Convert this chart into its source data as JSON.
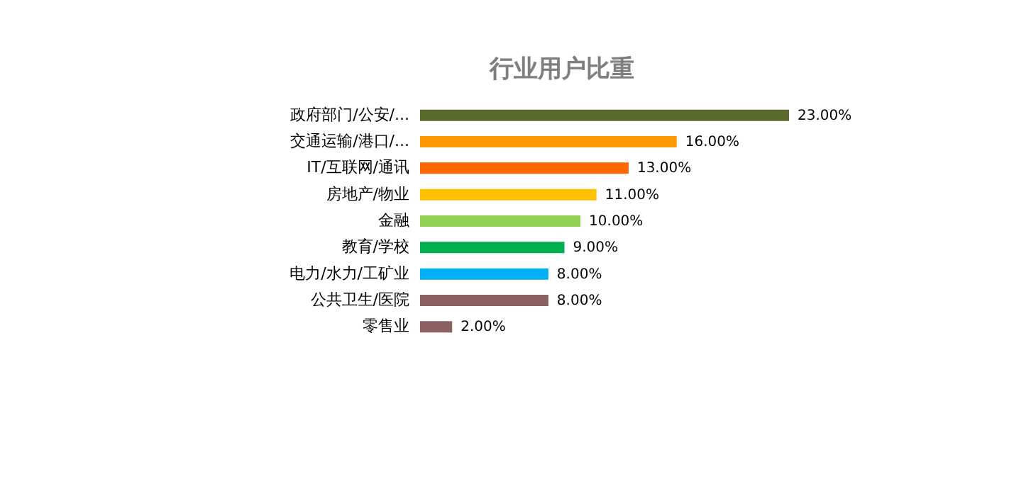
{
  "chart_data": {
    "type": "bar",
    "orientation": "horizontal",
    "title": "行业用户比重",
    "categories": [
      "政府部门/公安/...",
      "交通运输/港口/...",
      "IT/互联网/通讯",
      "房地产/物业",
      "金融",
      "教育/学校",
      "电力/水力/工矿业",
      "公共卫生/医院",
      "零售业"
    ],
    "values": [
      23,
      16,
      13,
      11,
      10,
      9,
      8,
      8,
      2
    ],
    "colors": [
      "#5b6b2f",
      "#ff9900",
      "#ff6600",
      "#ffc000",
      "#92d050",
      "#00b050",
      "#00b0f0",
      "#8b6060",
      "#8b6060"
    ],
    "value_labels": [
      "23.00%",
      "16.00%",
      "13.00%",
      "11.00%",
      "10.00%",
      "9.00%",
      "8.00%",
      "8.00%",
      "2.00%"
    ],
    "tick_labels": "y",
    "grid": false
  }
}
